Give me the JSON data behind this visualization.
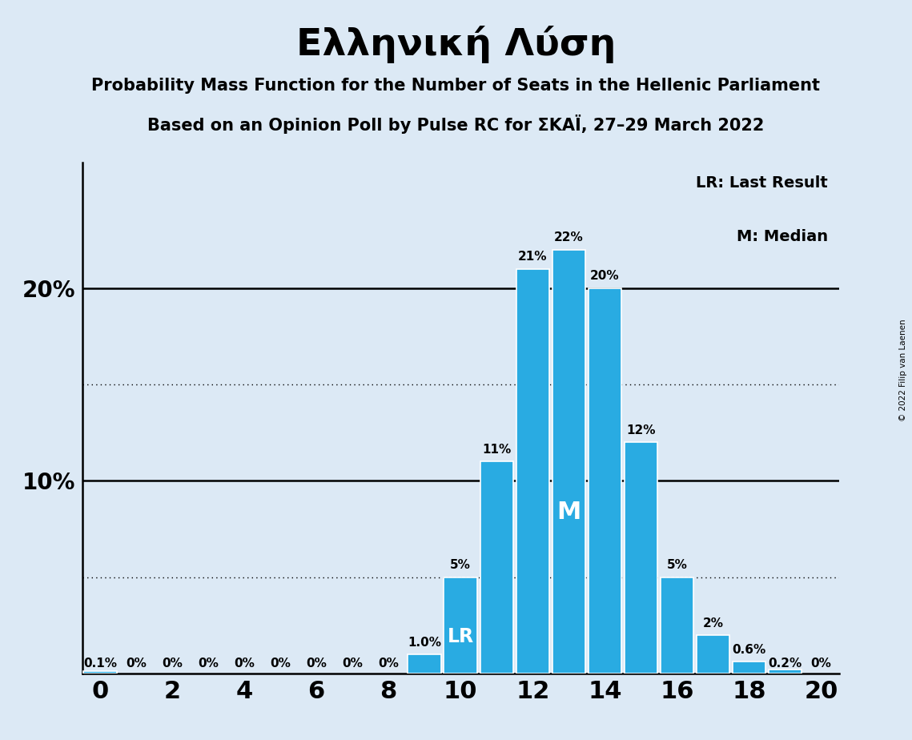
{
  "title": "Ελληνική Λύση",
  "subtitle1": "Probability Mass Function for the Number of Seats in the Hellenic Parliament",
  "subtitle2": "Based on an Opinion Poll by Pulse RC for ΣΚΑΪ, 27–29 March 2022",
  "copyright": "© 2022 Filip van Laenen",
  "background_color": "#dce9f5",
  "bar_color": "#29abe2",
  "seats": [
    0,
    1,
    2,
    3,
    4,
    5,
    6,
    7,
    8,
    9,
    10,
    11,
    12,
    13,
    14,
    15,
    16,
    17,
    18,
    19,
    20
  ],
  "probabilities": [
    0.001,
    0.0,
    0.0,
    0.0,
    0.0,
    0.0,
    0.0,
    0.0,
    0.0,
    0.01,
    0.05,
    0.11,
    0.21,
    0.22,
    0.2,
    0.12,
    0.05,
    0.02,
    0.006,
    0.002,
    0.0
  ],
  "labels": [
    "0.1%",
    "0%",
    "0%",
    "0%",
    "0%",
    "0%",
    "0%",
    "0%",
    "0%",
    "1.0%",
    "5%",
    "11%",
    "21%",
    "22%",
    "20%",
    "12%",
    "5%",
    "2%",
    "0.6%",
    "0.2%",
    "0%"
  ],
  "lr_seat": 10,
  "median_seat": 13,
  "solid_lines": [
    0.1,
    0.2
  ],
  "dotted_lines": [
    0.05,
    0.15
  ],
  "ylim": [
    0,
    0.265
  ],
  "xlim": [
    -0.5,
    20.5
  ],
  "legend_lr": "LR: Last Result",
  "legend_m": "M: Median"
}
